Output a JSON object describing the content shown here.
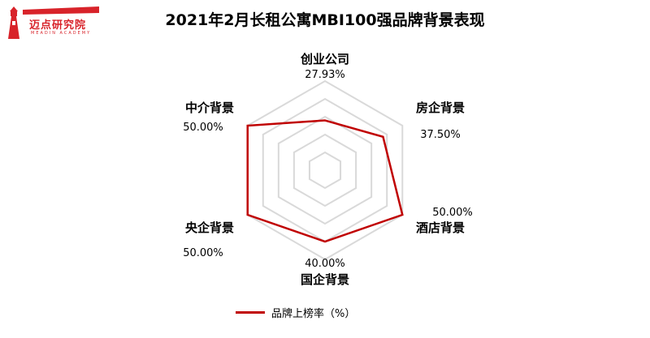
{
  "logo": {
    "text": "迈点研究院",
    "sub": "MEADIN ACADEMY"
  },
  "title": "2021年2月长租公寓MBI100强品牌背景表现",
  "colors": {
    "series": "#c00000",
    "grid": "#d9d9d9",
    "brand": "#d8232a"
  },
  "chart_data": {
    "type": "radar",
    "title": "2021年2月长租公寓MBI100强品牌背景表现",
    "categories": [
      "创业公司",
      "房企背景",
      "酒店背景",
      "国企背景",
      "央企背景",
      "中介背景"
    ],
    "value_labels": [
      "27.93%",
      "37.50%",
      "50.00%",
      "40.00%",
      "50.00%",
      "50.00%"
    ],
    "series": [
      {
        "name": "品牌上榜率（%）",
        "values": [
          27.93,
          37.5,
          50.0,
          40.0,
          50.0,
          50.0
        ]
      }
    ],
    "rmax": 50,
    "grid_levels": 5,
    "legend": "bottom"
  }
}
